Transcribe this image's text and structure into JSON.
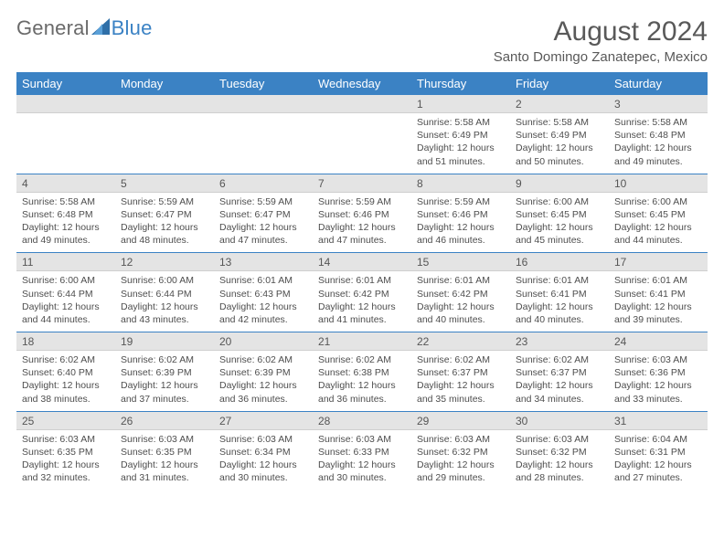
{
  "logo": {
    "text_a": "General",
    "text_b": "Blue"
  },
  "title": "August 2024",
  "location": "Santo Domingo Zanatepec, Mexico",
  "header_bg": "#3b82c4",
  "daynum_bg": "#e4e4e4",
  "text_color": "#595959",
  "days_of_week": [
    "Sunday",
    "Monday",
    "Tuesday",
    "Wednesday",
    "Thursday",
    "Friday",
    "Saturday"
  ],
  "weeks": [
    {
      "nums": [
        "",
        "",
        "",
        "",
        "1",
        "2",
        "3"
      ],
      "details": [
        "",
        "",
        "",
        "",
        "Sunrise: 5:58 AM\nSunset: 6:49 PM\nDaylight: 12 hours and 51 minutes.",
        "Sunrise: 5:58 AM\nSunset: 6:49 PM\nDaylight: 12 hours and 50 minutes.",
        "Sunrise: 5:58 AM\nSunset: 6:48 PM\nDaylight: 12 hours and 49 minutes."
      ]
    },
    {
      "nums": [
        "4",
        "5",
        "6",
        "7",
        "8",
        "9",
        "10"
      ],
      "details": [
        "Sunrise: 5:58 AM\nSunset: 6:48 PM\nDaylight: 12 hours and 49 minutes.",
        "Sunrise: 5:59 AM\nSunset: 6:47 PM\nDaylight: 12 hours and 48 minutes.",
        "Sunrise: 5:59 AM\nSunset: 6:47 PM\nDaylight: 12 hours and 47 minutes.",
        "Sunrise: 5:59 AM\nSunset: 6:46 PM\nDaylight: 12 hours and 47 minutes.",
        "Sunrise: 5:59 AM\nSunset: 6:46 PM\nDaylight: 12 hours and 46 minutes.",
        "Sunrise: 6:00 AM\nSunset: 6:45 PM\nDaylight: 12 hours and 45 minutes.",
        "Sunrise: 6:00 AM\nSunset: 6:45 PM\nDaylight: 12 hours and 44 minutes."
      ]
    },
    {
      "nums": [
        "11",
        "12",
        "13",
        "14",
        "15",
        "16",
        "17"
      ],
      "details": [
        "Sunrise: 6:00 AM\nSunset: 6:44 PM\nDaylight: 12 hours and 44 minutes.",
        "Sunrise: 6:00 AM\nSunset: 6:44 PM\nDaylight: 12 hours and 43 minutes.",
        "Sunrise: 6:01 AM\nSunset: 6:43 PM\nDaylight: 12 hours and 42 minutes.",
        "Sunrise: 6:01 AM\nSunset: 6:42 PM\nDaylight: 12 hours and 41 minutes.",
        "Sunrise: 6:01 AM\nSunset: 6:42 PM\nDaylight: 12 hours and 40 minutes.",
        "Sunrise: 6:01 AM\nSunset: 6:41 PM\nDaylight: 12 hours and 40 minutes.",
        "Sunrise: 6:01 AM\nSunset: 6:41 PM\nDaylight: 12 hours and 39 minutes."
      ]
    },
    {
      "nums": [
        "18",
        "19",
        "20",
        "21",
        "22",
        "23",
        "24"
      ],
      "details": [
        "Sunrise: 6:02 AM\nSunset: 6:40 PM\nDaylight: 12 hours and 38 minutes.",
        "Sunrise: 6:02 AM\nSunset: 6:39 PM\nDaylight: 12 hours and 37 minutes.",
        "Sunrise: 6:02 AM\nSunset: 6:39 PM\nDaylight: 12 hours and 36 minutes.",
        "Sunrise: 6:02 AM\nSunset: 6:38 PM\nDaylight: 12 hours and 36 minutes.",
        "Sunrise: 6:02 AM\nSunset: 6:37 PM\nDaylight: 12 hours and 35 minutes.",
        "Sunrise: 6:02 AM\nSunset: 6:37 PM\nDaylight: 12 hours and 34 minutes.",
        "Sunrise: 6:03 AM\nSunset: 6:36 PM\nDaylight: 12 hours and 33 minutes."
      ]
    },
    {
      "nums": [
        "25",
        "26",
        "27",
        "28",
        "29",
        "30",
        "31"
      ],
      "details": [
        "Sunrise: 6:03 AM\nSunset: 6:35 PM\nDaylight: 12 hours and 32 minutes.",
        "Sunrise: 6:03 AM\nSunset: 6:35 PM\nDaylight: 12 hours and 31 minutes.",
        "Sunrise: 6:03 AM\nSunset: 6:34 PM\nDaylight: 12 hours and 30 minutes.",
        "Sunrise: 6:03 AM\nSunset: 6:33 PM\nDaylight: 12 hours and 30 minutes.",
        "Sunrise: 6:03 AM\nSunset: 6:32 PM\nDaylight: 12 hours and 29 minutes.",
        "Sunrise: 6:03 AM\nSunset: 6:32 PM\nDaylight: 12 hours and 28 minutes.",
        "Sunrise: 6:04 AM\nSunset: 6:31 PM\nDaylight: 12 hours and 27 minutes."
      ]
    }
  ]
}
